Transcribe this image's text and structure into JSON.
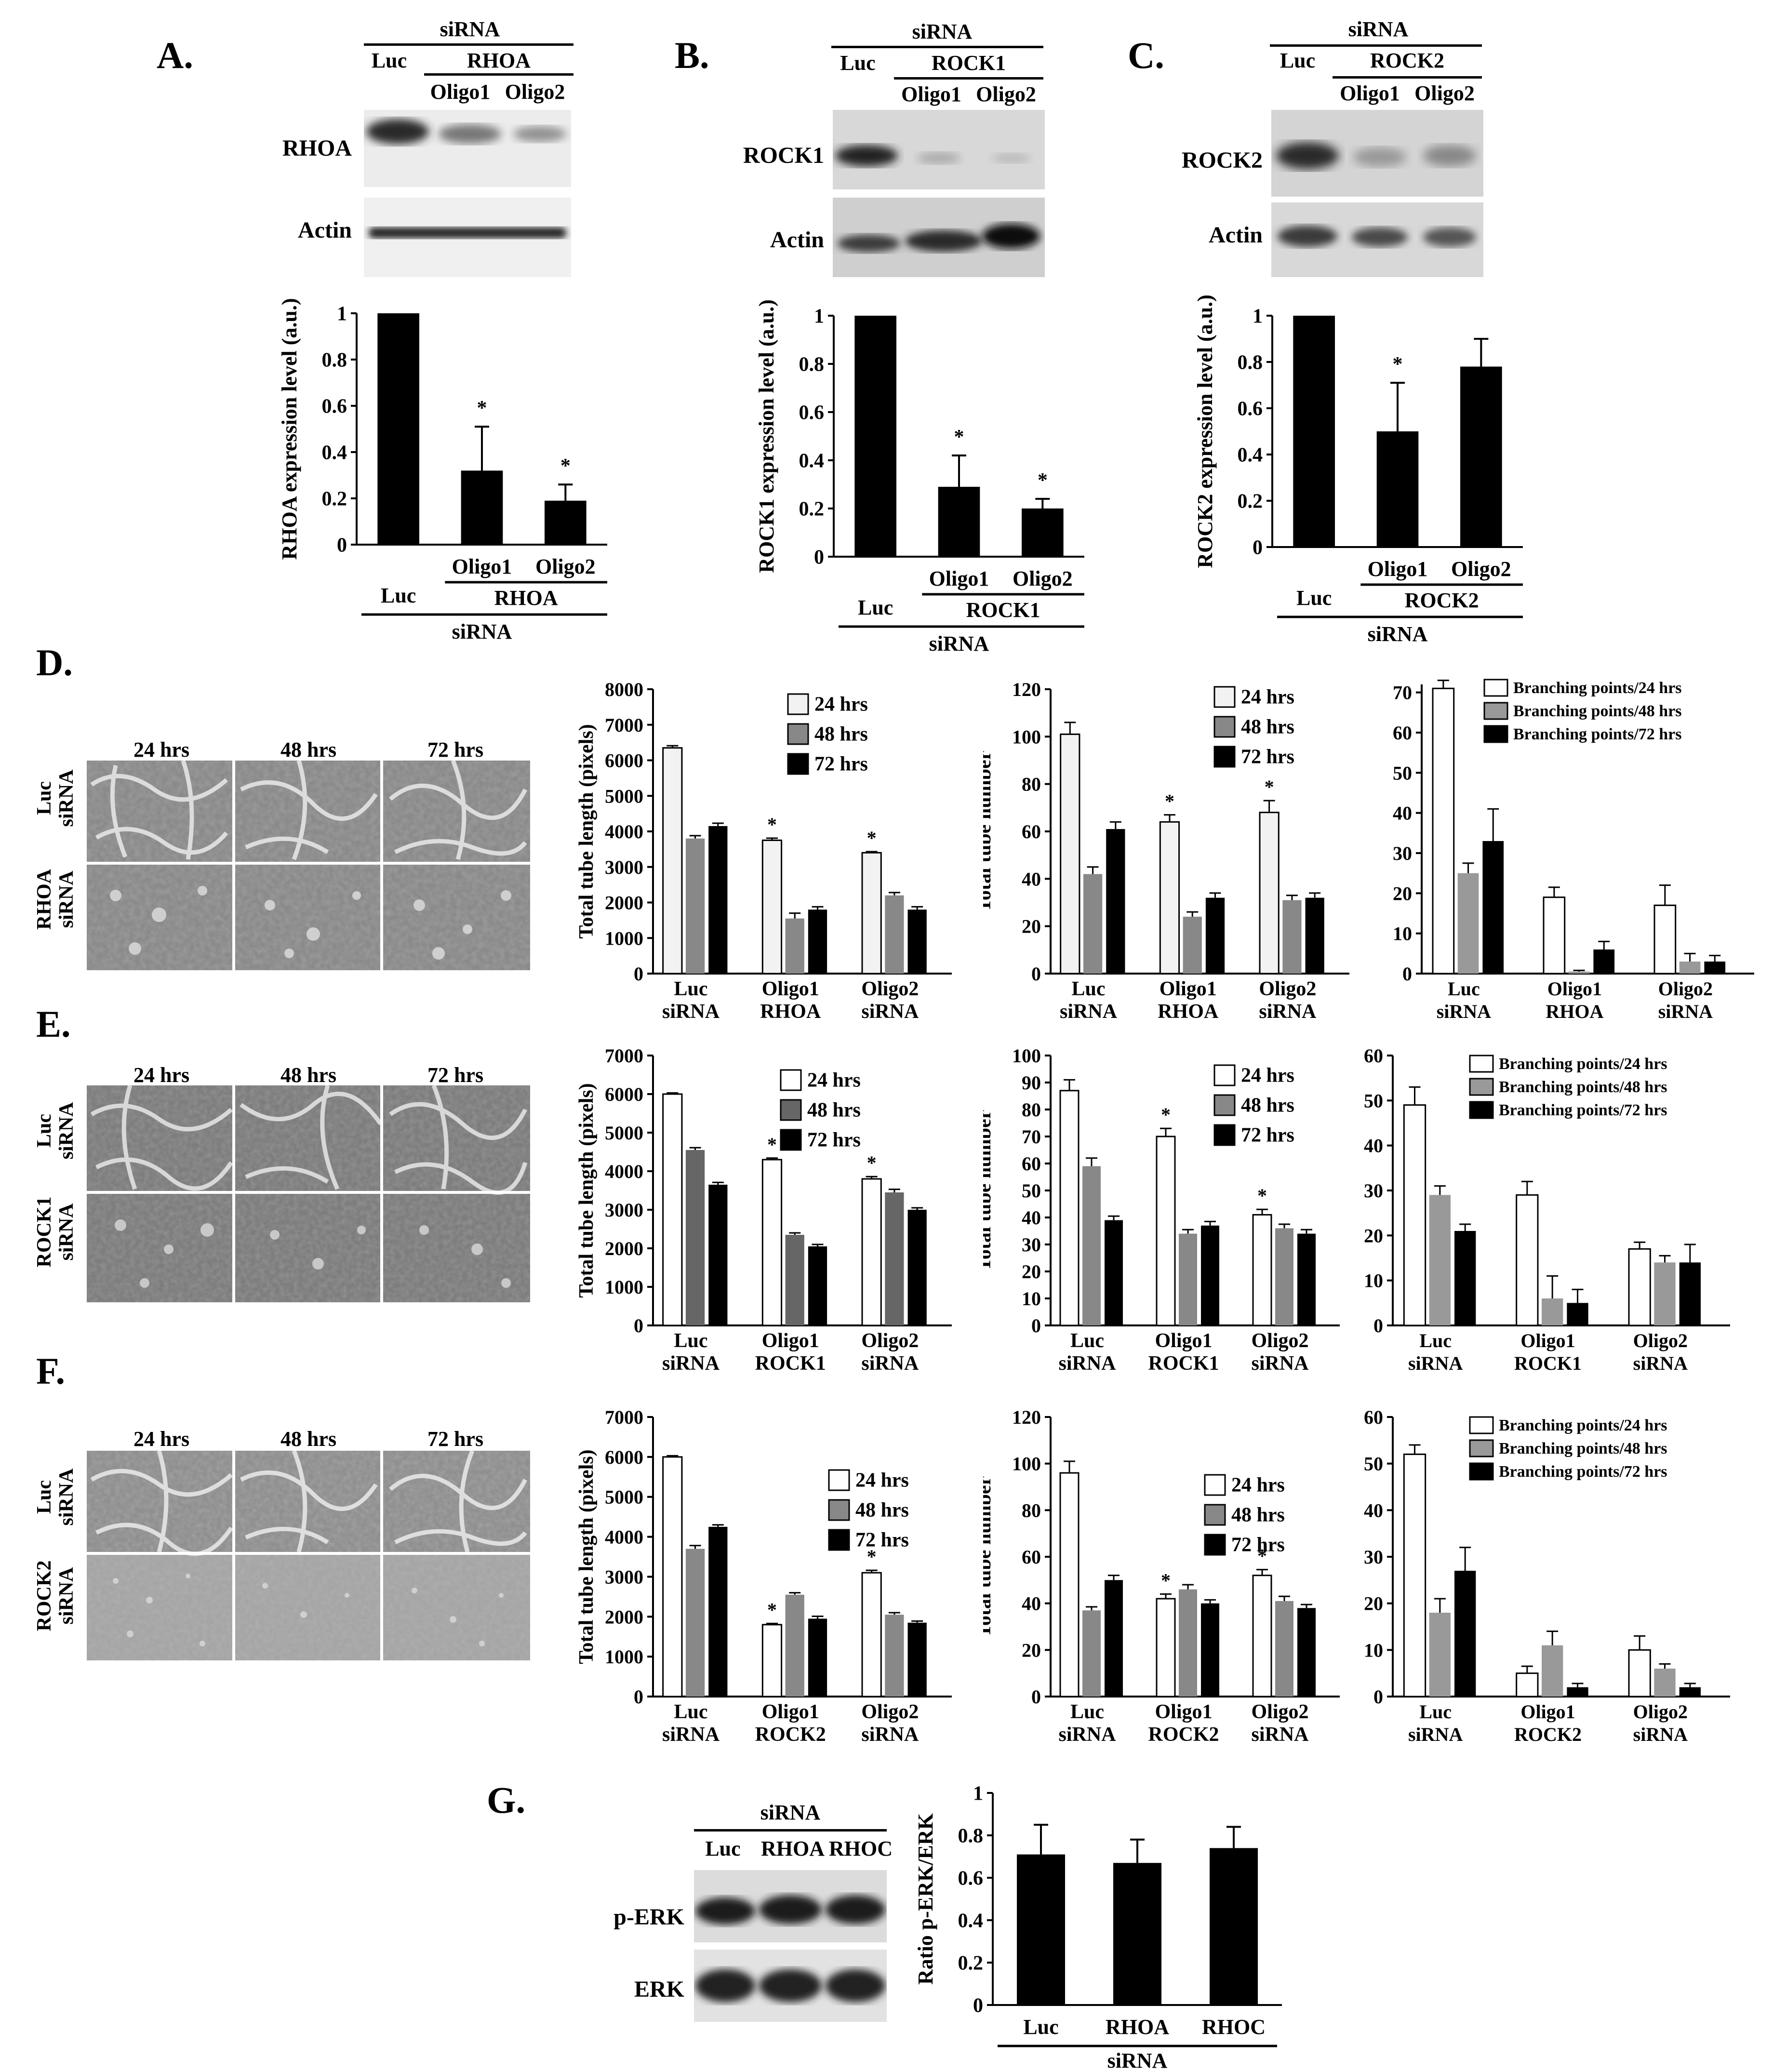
{
  "panels": {
    "A": {
      "label": "A.",
      "blot_header": {
        "top": "siRNA",
        "luc": "Luc",
        "group": "RHOA",
        "oligo1": "Oligo1",
        "oligo2": "Oligo2"
      },
      "blot_rows": [
        "RHOA",
        "Actin"
      ]
    },
    "B": {
      "label": "B.",
      "blot_header": {
        "top": "siRNA",
        "luc": "Luc",
        "group": "ROCK1",
        "oligo1": "Oligo1",
        "oligo2": "Oligo2"
      },
      "blot_rows": [
        "ROCK1",
        "Actin"
      ]
    },
    "C": {
      "label": "C.",
      "blot_header": {
        "top": "siRNA",
        "luc": "Luc",
        "group": "ROCK2",
        "oligo1": "Oligo1",
        "oligo2": "Oligo2"
      },
      "blot_rows": [
        "ROCK2",
        "Actin"
      ]
    },
    "D": {
      "label": "D.",
      "times": [
        "24 hrs",
        "48 hrs",
        "72 hrs"
      ],
      "rows": [
        "Luc\nsiRNA",
        "RHOA\nsiRNA"
      ]
    },
    "E": {
      "label": "E.",
      "times": [
        "24 hrs",
        "48 hrs",
        "72 hrs"
      ],
      "rows": [
        "Luc\nsiRNA",
        "ROCK1\nsiRNA"
      ]
    },
    "F": {
      "label": "F.",
      "times": [
        "24 hrs",
        "48 hrs",
        "72 hrs"
      ],
      "rows": [
        "Luc\nsiRNA",
        "ROCK2\nsiRNA"
      ]
    },
    "G": {
      "label": "G.",
      "blot_header": {
        "top": "siRNA",
        "lanes": [
          "Luc",
          "RHOA",
          "RHOC"
        ]
      },
      "blot_rows": [
        "p-ERK",
        "ERK"
      ]
    }
  },
  "chart_data": [
    {
      "id": "A",
      "type": "bar",
      "ylabel": "RHOA expression level (a.u.)",
      "ylim": [
        0,
        1
      ],
      "yticks": [
        0,
        0.2,
        0.4,
        0.6,
        0.8,
        1
      ],
      "categories": [
        "Luc",
        "Oligo1",
        "Oligo2"
      ],
      "values": [
        1,
        0.32,
        0.19
      ],
      "errors": [
        0,
        0.19,
        0.07
      ],
      "sig": [
        false,
        true,
        true
      ],
      "bar_color": "#000000",
      "xgroup": {
        "luc": "Luc",
        "oligo_group": "RHOA",
        "bottom": "siRNA"
      }
    },
    {
      "id": "B",
      "type": "bar",
      "ylabel": "ROCK1 expression level (a.u.)",
      "ylim": [
        0,
        1
      ],
      "yticks": [
        0,
        0.2,
        0.4,
        0.6,
        0.8,
        1
      ],
      "categories": [
        "Luc",
        "Oligo1",
        "Oligo2"
      ],
      "values": [
        1,
        0.29,
        0.2
      ],
      "errors": [
        0,
        0.13,
        0.04
      ],
      "sig": [
        false,
        true,
        true
      ],
      "bar_color": "#000000",
      "xgroup": {
        "luc": "Luc",
        "oligo_group": "ROCK1",
        "bottom": "siRNA"
      }
    },
    {
      "id": "C",
      "type": "bar",
      "ylabel": "ROCK2 expression level (a.u.)",
      "ylim": [
        0,
        1
      ],
      "yticks": [
        0,
        0.2,
        0.4,
        0.6,
        0.8,
        1
      ],
      "categories": [
        "Luc",
        "Oligo1",
        "Oligo2"
      ],
      "values": [
        1,
        0.5,
        0.78
      ],
      "errors": [
        0,
        0.21,
        0.12
      ],
      "sig": [
        false,
        true,
        false
      ],
      "bar_color": "#000000",
      "xgroup": {
        "luc": "Luc",
        "oligo_group": "ROCK2",
        "bottom": "siRNA"
      }
    },
    {
      "id": "D-length",
      "type": "bar",
      "ylabel": "Total tube length (pixels)",
      "ylim": [
        0,
        8000
      ],
      "yticks": [
        0,
        1000,
        2000,
        3000,
        4000,
        5000,
        6000,
        7000,
        8000
      ],
      "groups": [
        [
          "Luc",
          "siRNA"
        ],
        [
          "Oligo1",
          "RHOA"
        ],
        [
          "Oligo2",
          "siRNA"
        ]
      ],
      "series": [
        {
          "name": "24 hrs",
          "values": [
            6350,
            3750,
            3400
          ],
          "errors": [
            60,
            60,
            30
          ],
          "sig": [
            false,
            true,
            true
          ]
        },
        {
          "name": "48 hrs",
          "values": [
            3800,
            1550,
            2200
          ],
          "errors": [
            80,
            150,
            80
          ],
          "sig": [
            false,
            false,
            false
          ]
        },
        {
          "name": "72 hrs",
          "values": [
            4150,
            1800,
            1800
          ],
          "errors": [
            80,
            80,
            80
          ],
          "sig": [
            false,
            false,
            false
          ]
        }
      ],
      "colors": [
        "#f2f2f2",
        "#888888",
        "#000000"
      ]
    },
    {
      "id": "D-number",
      "type": "bar",
      "ylabel": "Total tube number",
      "ylim": [
        0,
        120
      ],
      "yticks": [
        0,
        20,
        40,
        60,
        80,
        100,
        120
      ],
      "groups": [
        [
          "Luc",
          "siRNA"
        ],
        [
          "Oligo1",
          "RHOA"
        ],
        [
          "Oligo2",
          "siRNA"
        ]
      ],
      "series": [
        {
          "name": "24 hrs",
          "values": [
            101,
            64,
            68
          ],
          "errors": [
            5,
            3,
            5
          ],
          "sig": [
            false,
            true,
            true
          ]
        },
        {
          "name": "48 hrs",
          "values": [
            42,
            24,
            31
          ],
          "errors": [
            3,
            2,
            2
          ],
          "sig": [
            false,
            false,
            false
          ]
        },
        {
          "name": "72 hrs",
          "values": [
            61,
            32,
            32
          ],
          "errors": [
            3,
            2,
            2
          ],
          "sig": [
            false,
            false,
            false
          ]
        }
      ],
      "colors": [
        "#f2f2f2",
        "#888888",
        "#000000"
      ]
    },
    {
      "id": "D-branch",
      "type": "bar",
      "ylabel": "",
      "ylim": [
        0,
        72
      ],
      "axis_top": 72,
      "yticks": [
        0,
        10,
        20,
        30,
        40,
        50,
        60,
        70
      ],
      "groups": [
        [
          "Luc",
          "siRNA"
        ],
        [
          "Oligo1",
          "RHOA"
        ],
        [
          "Oligo2",
          "siRNA"
        ]
      ],
      "series": [
        {
          "name": "Branching points/24 hrs",
          "values": [
            71,
            19,
            17
          ],
          "errors": [
            2,
            2.5,
            5
          ],
          "sig": [
            false,
            false,
            false
          ]
        },
        {
          "name": "Branching points/48 hrs",
          "values": [
            25,
            0.5,
            3
          ],
          "errors": [
            2.5,
            0.3,
            2
          ],
          "sig": [
            false,
            false,
            false
          ]
        },
        {
          "name": "Branching points/72 hrs",
          "values": [
            33,
            6,
            3
          ],
          "errors": [
            8,
            2,
            1.5
          ],
          "sig": [
            false,
            false,
            false
          ]
        }
      ],
      "colors": [
        "#ffffff",
        "#999999",
        "#000000"
      ]
    },
    {
      "id": "E-length",
      "type": "bar",
      "ylabel": "Total tube length (pixels)",
      "ylim": [
        0,
        7000
      ],
      "yticks": [
        0,
        1000,
        2000,
        3000,
        4000,
        5000,
        6000,
        7000
      ],
      "groups": [
        [
          "Luc",
          "siRNA"
        ],
        [
          "Oligo1",
          "ROCK1"
        ],
        [
          "Oligo2",
          "siRNA"
        ]
      ],
      "series": [
        {
          "name": "24 hrs",
          "values": [
            6000,
            4300,
            3800
          ],
          "errors": [
            30,
            40,
            60
          ],
          "sig": [
            false,
            true,
            true
          ]
        },
        {
          "name": "48 hrs",
          "values": [
            4550,
            2350,
            3450
          ],
          "errors": [
            60,
            50,
            80
          ],
          "sig": [
            false,
            false,
            false
          ]
        },
        {
          "name": "72 hrs",
          "values": [
            3650,
            2050,
            3000
          ],
          "errors": [
            60,
            50,
            50
          ],
          "sig": [
            false,
            false,
            false
          ]
        }
      ],
      "colors": [
        "#ffffff",
        "#666666",
        "#000000"
      ]
    },
    {
      "id": "E-number",
      "type": "bar",
      "ylabel": "Total tube number",
      "ylim": [
        0,
        100
      ],
      "yticks": [
        0,
        10,
        20,
        30,
        40,
        50,
        60,
        70,
        80,
        90,
        100
      ],
      "groups": [
        [
          "Luc",
          "siRNA"
        ],
        [
          "Oligo1",
          "ROCK1"
        ],
        [
          "Oligo2",
          "siRNA"
        ]
      ],
      "series": [
        {
          "name": "24 hrs",
          "values": [
            87,
            70,
            41
          ],
          "errors": [
            4,
            3,
            2
          ],
          "sig": [
            false,
            true,
            true
          ]
        },
        {
          "name": "48 hrs",
          "values": [
            59,
            34,
            36
          ],
          "errors": [
            3,
            1.5,
            1.5
          ],
          "sig": [
            false,
            false,
            false
          ]
        },
        {
          "name": "72 hrs",
          "values": [
            39,
            37,
            34
          ],
          "errors": [
            1.5,
            1.5,
            1.5
          ],
          "sig": [
            false,
            false,
            false
          ]
        }
      ],
      "colors": [
        "#ffffff",
        "#888888",
        "#000000"
      ]
    },
    {
      "id": "E-branch",
      "type": "bar",
      "ylabel": "",
      "ylim": [
        0,
        60
      ],
      "yticks": [
        0,
        10,
        20,
        30,
        40,
        50,
        60
      ],
      "groups": [
        [
          "Luc",
          "siRNA"
        ],
        [
          "Oligo1",
          "ROCK1"
        ],
        [
          "Oligo2",
          "siRNA"
        ]
      ],
      "series": [
        {
          "name": "Branching points/24 hrs",
          "values": [
            49,
            29,
            17
          ],
          "errors": [
            4,
            3,
            1.5
          ],
          "sig": [
            false,
            false,
            false
          ]
        },
        {
          "name": "Branching points/48 hrs",
          "values": [
            29,
            6,
            14
          ],
          "errors": [
            2,
            5,
            1.5
          ],
          "sig": [
            false,
            false,
            false
          ]
        },
        {
          "name": "Branching points/72 hrs",
          "values": [
            21,
            5,
            14
          ],
          "errors": [
            1.5,
            3,
            4
          ],
          "sig": [
            false,
            false,
            false
          ]
        }
      ],
      "colors": [
        "#ffffff",
        "#999999",
        "#000000"
      ]
    },
    {
      "id": "F-length",
      "type": "bar",
      "ylabel": "Total tube length (pixels)",
      "ylim": [
        0,
        7000
      ],
      "yticks": [
        0,
        1000,
        2000,
        3000,
        4000,
        5000,
        6000,
        7000
      ],
      "groups": [
        [
          "Luc",
          "siRNA"
        ],
        [
          "Oligo1",
          "ROCK2"
        ],
        [
          "Oligo2",
          "siRNA"
        ]
      ],
      "series": [
        {
          "name": "24 hrs",
          "values": [
            6000,
            1800,
            3100
          ],
          "errors": [
            30,
            30,
            60
          ],
          "sig": [
            false,
            true,
            true
          ]
        },
        {
          "name": "48 hrs",
          "values": [
            3700,
            2550,
            2050
          ],
          "errors": [
            80,
            50,
            50
          ],
          "sig": [
            false,
            false,
            false
          ]
        },
        {
          "name": "72 hrs",
          "values": [
            4250,
            1950,
            1850
          ],
          "errors": [
            50,
            60,
            40
          ],
          "sig": [
            false,
            false,
            false
          ]
        }
      ],
      "colors": [
        "#ffffff",
        "#888888",
        "#000000"
      ]
    },
    {
      "id": "F-number",
      "type": "bar",
      "ylabel": "Total tube number",
      "ylim": [
        0,
        120
      ],
      "yticks": [
        0,
        20,
        40,
        60,
        80,
        100,
        120
      ],
      "groups": [
        [
          "Luc",
          "siRNA"
        ],
        [
          "Oligo1",
          "ROCK2"
        ],
        [
          "Oligo2",
          "siRNA"
        ]
      ],
      "series": [
        {
          "name": "24 hrs",
          "values": [
            96,
            42,
            52
          ],
          "errors": [
            5,
            2,
            2.5
          ],
          "sig": [
            false,
            true,
            true
          ]
        },
        {
          "name": "48 hrs",
          "values": [
            37,
            46,
            41
          ],
          "errors": [
            1.5,
            2,
            2
          ],
          "sig": [
            false,
            false,
            false
          ]
        },
        {
          "name": "72 hrs",
          "values": [
            50,
            40,
            38
          ],
          "errors": [
            2,
            1.5,
            1.5
          ],
          "sig": [
            false,
            false,
            false
          ]
        }
      ],
      "colors": [
        "#ffffff",
        "#888888",
        "#000000"
      ]
    },
    {
      "id": "F-branch",
      "type": "bar",
      "ylabel": "",
      "ylim": [
        0,
        60
      ],
      "yticks": [
        0,
        10,
        20,
        30,
        40,
        50,
        60
      ],
      "groups": [
        [
          "Luc",
          "siRNA"
        ],
        [
          "Oligo1",
          "ROCK2"
        ],
        [
          "Oligo2",
          "siRNA"
        ]
      ],
      "series": [
        {
          "name": "Branching points/24 hrs",
          "values": [
            52,
            5,
            10
          ],
          "errors": [
            2,
            1.5,
            3
          ],
          "sig": [
            false,
            false,
            false
          ]
        },
        {
          "name": "Branching points/48 hrs",
          "values": [
            18,
            11,
            6
          ],
          "errors": [
            3,
            3,
            1
          ],
          "sig": [
            false,
            false,
            false
          ]
        },
        {
          "name": "Branching points/72 hrs",
          "values": [
            27,
            2,
            2
          ],
          "errors": [
            5,
            0.8,
            0.8
          ],
          "sig": [
            false,
            false,
            false
          ]
        }
      ],
      "colors": [
        "#ffffff",
        "#999999",
        "#000000"
      ]
    },
    {
      "id": "G",
      "type": "bar",
      "ylabel": "Ratio p-ERK/ERK",
      "ylim": [
        0,
        1
      ],
      "yticks": [
        0,
        0.2,
        0.4,
        0.6,
        0.8,
        1
      ],
      "categories": [
        "Luc",
        "RHOA",
        "RHOC"
      ],
      "values": [
        0.71,
        0.67,
        0.74
      ],
      "errors": [
        0.14,
        0.11,
        0.1
      ],
      "sig": [
        false,
        false,
        false
      ],
      "bar_color": "#000000",
      "xgroup": {
        "bottom": "siRNA"
      }
    }
  ]
}
